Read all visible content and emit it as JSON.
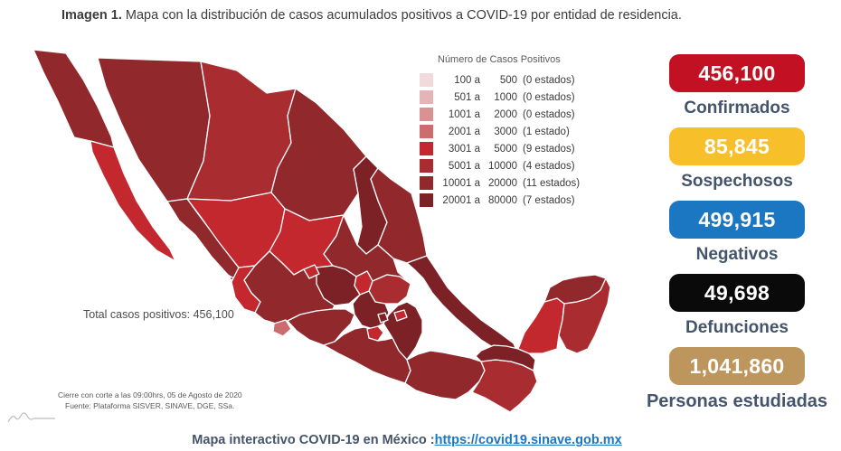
{
  "title": {
    "prefix": "Imagen 1.",
    "text": " Mapa con la distribución de casos acumulados positivos a COVID-19 por entidad de residencia."
  },
  "legend": {
    "title": "Número de Casos Positivos",
    "rows": [
      {
        "from": "100 a",
        "to": "500",
        "count": "(0 estados)",
        "color": "#F2D9DB"
      },
      {
        "from": "501 a",
        "to": "1000",
        "count": "(0 estados)",
        "color": "#E5B4B8"
      },
      {
        "from": "1001 a",
        "to": "2000",
        "count": "(0 estados)",
        "color": "#DA9194"
      },
      {
        "from": "2001 a",
        "to": "3000",
        "count": "(1 estado)",
        "color": "#CD6C6E"
      },
      {
        "from": "3001 a",
        "to": "5000",
        "count": "(9 estados)",
        "color": "#C2282E"
      },
      {
        "from": "5001 a",
        "to": "10000",
        "count": "(4 estados)",
        "color": "#A92C30"
      },
      {
        "from": "10001 a",
        "to": "20000",
        "count": "(11 estados)",
        "color": "#90282C"
      },
      {
        "from": "20001 a",
        "to": "80000",
        "count": "(7 estados)",
        "color": "#7C2125"
      }
    ]
  },
  "map": {
    "total_label": "Total casos positivos: 456,100",
    "footnote_line1": "Cierre con corte a las 09:00hrs, 05 de Agosto de 2020",
    "footnote_line2": "Fuente: Plataforma SISVER, SINAVE, DGE, SSa.",
    "palette": {
      "b4": "#CD6C6E",
      "b5": "#C2282E",
      "b6": "#A92C30",
      "b7": "#90282C",
      "b8": "#7C2125"
    },
    "states": {
      "bc": "b7",
      "bcs": "b5",
      "son": "b7",
      "chh": "b6",
      "coa": "b7",
      "nl": "b8",
      "tam": "b7",
      "sin": "b7",
      "dur": "b5",
      "zac": "b5",
      "slp": "b7",
      "nay": "b5",
      "jal": "b7",
      "ags": "b5",
      "gto": "b8",
      "qro": "b5",
      "hgo": "b6",
      "mex": "b8",
      "cdmx": "b8",
      "tlx": "b5",
      "mor": "b5",
      "pue": "b8",
      "ver": "b8",
      "mic": "b7",
      "col": "b4",
      "gro": "b7",
      "oax": "b7",
      "chp": "b6",
      "tab": "b8",
      "cam": "b5",
      "yuc": "b7",
      "qr": "b6"
    }
  },
  "stats": [
    {
      "id": "confirmados",
      "value": "456,100",
      "label": "Confirmados",
      "box_color": "#C21122",
      "wide": false
    },
    {
      "id": "sospechosos",
      "value": "85,845",
      "label": "Sospechosos",
      "box_color": "#F7BF2A",
      "wide": false
    },
    {
      "id": "negativos",
      "value": "499,915",
      "label": "Negativos",
      "box_color": "#1C77C3",
      "wide": false
    },
    {
      "id": "defunciones",
      "value": "49,698",
      "label": "Defunciones",
      "box_color": "#0A0A0A",
      "wide": false
    },
    {
      "id": "personas-estudiadas",
      "value": "1,041,860",
      "label": "Personas estudiadas",
      "box_color": "#BD965D",
      "wide": true
    }
  ],
  "footer": {
    "label": "Mapa interactivo COVID-19 en México :",
    "link": "https://covid19.sinave.gob.mx"
  },
  "colors": {
    "label_text": "#44546A",
    "link": "#1B76C3",
    "title_text": "#3C3C3C"
  }
}
